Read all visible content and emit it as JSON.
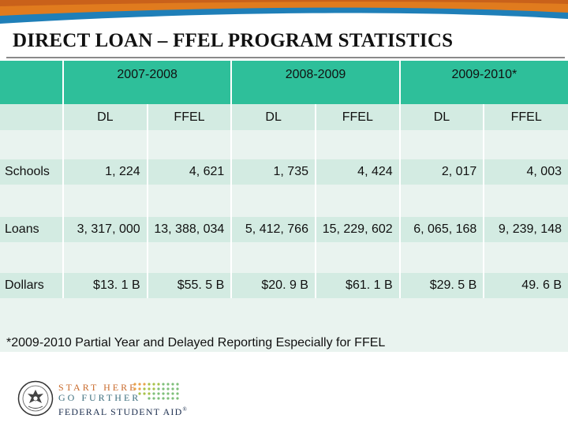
{
  "title": "DIRECT LOAN – FFEL PROGRAM STATISTICS",
  "table": {
    "years": [
      "2007-2008",
      "2008-2009",
      "2009-2010*"
    ],
    "subheaders": [
      "DL",
      "FFEL",
      "DL",
      "FFEL",
      "DL",
      "FFEL"
    ],
    "rows": [
      {
        "label": "Schools",
        "values": [
          "1, 224",
          "4, 621",
          "1, 735",
          "4, 424",
          "2, 017",
          "4, 003"
        ]
      },
      {
        "label": "Loans",
        "values": [
          "3, 317, 000",
          "13, 388, 034",
          "5, 412, 766",
          "15, 229, 602",
          "6, 065, 168",
          "9, 239, 148"
        ]
      },
      {
        "label": "Dollars",
        "values": [
          "$13. 1 B",
          "$55. 5 B",
          "$20. 9 B",
          "$61. 1 B",
          "$29. 5 B",
          "49. 6 B"
        ]
      }
    ],
    "footnote": "*2009-2010  Partial Year and Delayed Reporting Especially for FFEL"
  },
  "logo": {
    "line1": "START HERE",
    "line2": "GO FURTHER",
    "line3": "FEDERAL STUDENT AID",
    "registered": "®"
  },
  "colors": {
    "header_teal": "#2ebf9a",
    "row_light": "#d3ebe2",
    "row_lighter": "#e9f3ef",
    "banner_blue": "#1f7fb8",
    "banner_orange": "#e07b1e"
  }
}
